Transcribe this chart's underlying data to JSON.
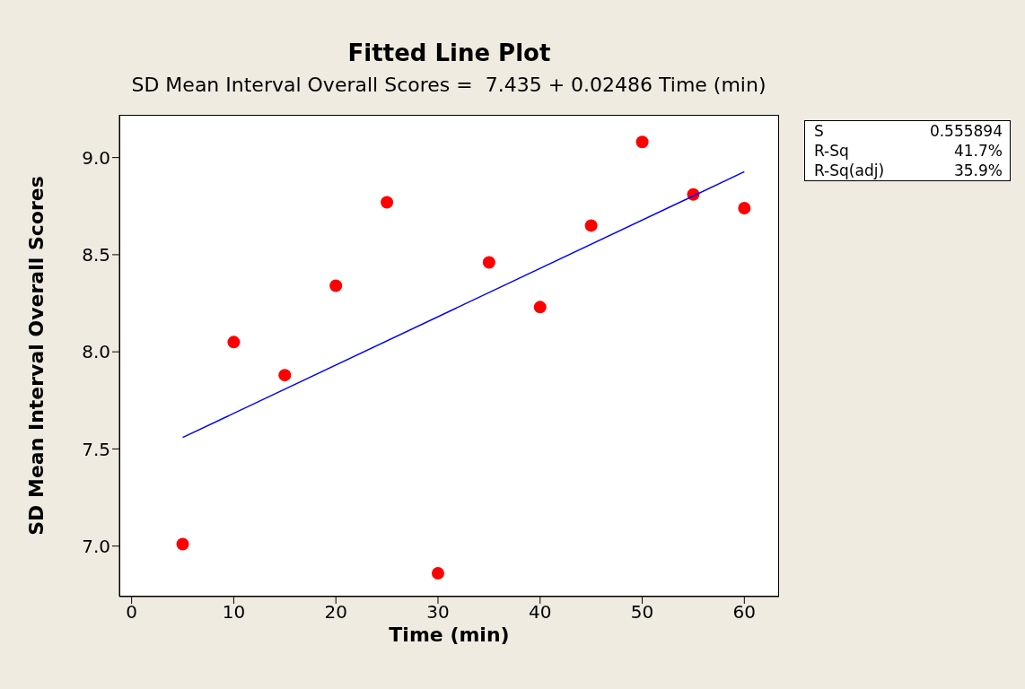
{
  "chart_data": {
    "type": "scatter",
    "title": "Fitted Line Plot",
    "subtitle": "SD Mean Interval Overall Scores =  7.435 + 0.02486 Time (min)",
    "xlabel": "Time (min)",
    "ylabel": "SD Mean Interval Overall Scores",
    "x": [
      5,
      10,
      15,
      20,
      25,
      30,
      35,
      40,
      45,
      50,
      55,
      60
    ],
    "series": [
      {
        "color": "#ff0000",
        "values": [
          7.01,
          8.05,
          7.88,
          8.34,
          8.77,
          6.86,
          8.46,
          8.23,
          8.65,
          9.08,
          8.81,
          8.74
        ]
      },
      {
        "type": "line",
        "marker": "none",
        "color": "#0000ff",
        "x": [
          5,
          60
        ],
        "values": [
          7.559,
          8.927
        ]
      }
    ],
    "xlim": [
      -1.2,
      63.4
    ],
    "xticks": [
      0,
      10,
      20,
      30,
      40,
      50,
      60
    ],
    "ylim": [
      6.74,
      9.22
    ],
    "yticks": [
      {
        "value": 7,
        "label": "7.0"
      },
      {
        "value": 7.5,
        "label": "7.5"
      },
      {
        "value": 8,
        "label": "8.0"
      },
      {
        "value": 8.5,
        "label": "8.5"
      },
      {
        "value": 9,
        "label": "9.0"
      }
    ],
    "marker": "circle",
    "line_style": "solid",
    "annotations": [
      "S",
      "0.555894",
      "R-Sq",
      "41.7%",
      "R-Sq(adj)",
      "35.9%"
    ]
  }
}
